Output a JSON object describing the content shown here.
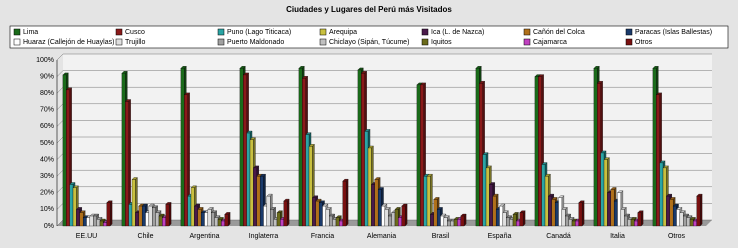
{
  "chart_data": {
    "type": "bar",
    "title": "Ciudades y Lugares del Perú más Visitados",
    "categories": [
      "EE.UU",
      "Chile",
      "Argentina",
      "Inglaterra",
      "Francia",
      "Alemania",
      "Brasil",
      "España",
      "Canadá",
      "Italia",
      "Otros"
    ],
    "series": [
      {
        "name": "Lima",
        "color": "#1a6b1a",
        "values": [
          91,
          92,
          95,
          95,
          95,
          94,
          85,
          95,
          90,
          95,
          95
        ]
      },
      {
        "name": "Cusco",
        "color": "#8b1a1a",
        "values": [
          82,
          75,
          79,
          91,
          89,
          92,
          85,
          86,
          90,
          86,
          79
        ]
      },
      {
        "name": "Puno (Lago Titicaca)",
        "color": "#2aa5a5",
        "values": [
          25,
          13,
          18,
          56,
          55,
          57,
          30,
          43,
          37,
          44,
          38
        ]
      },
      {
        "name": "Arequipa",
        "color": "#c8c040",
        "values": [
          23,
          28,
          23,
          52,
          48,
          47,
          30,
          35,
          30,
          40,
          35
        ]
      },
      {
        "name": "Ica (L. de Nazca)",
        "color": "#4a1a4a",
        "values": [
          10,
          8,
          12,
          35,
          17,
          25,
          7,
          25,
          18,
          20,
          18
        ]
      },
      {
        "name": "Cañón del Colca",
        "color": "#b0701a",
        "values": [
          8,
          12,
          10,
          30,
          15,
          28,
          16,
          18,
          16,
          22,
          16
        ]
      },
      {
        "name": "Paracas (Islas Ballestas)",
        "color": "#1a3a6b",
        "values": [
          5,
          12,
          8,
          30,
          14,
          22,
          10,
          10,
          14,
          15,
          12
        ]
      },
      {
        "name": "Huaraz (Callejón de Huaylas)",
        "color": "#ffffff",
        "values": [
          5,
          8,
          8,
          12,
          12,
          12,
          6,
          12,
          17,
          20,
          10
        ]
      },
      {
        "name": "Trujillo",
        "color": "#e0e0e0",
        "values": [
          6,
          12,
          10,
          18,
          10,
          10,
          5,
          8,
          10,
          10,
          8
        ]
      },
      {
        "name": "Puerto Maldonado",
        "color": "#a0a0a0",
        "values": [
          6,
          11,
          8,
          10,
          6,
          6,
          3,
          5,
          6,
          6,
          6
        ]
      },
      {
        "name": "Chiclayo (Sipán, Túcume)",
        "color": "#c0c0c0",
        "values": [
          4,
          8,
          5,
          4,
          4,
          8,
          3,
          4,
          4,
          4,
          5
        ]
      },
      {
        "name": "Iquitos",
        "color": "#6b6b1a",
        "values": [
          3,
          6,
          4,
          8,
          5,
          10,
          4,
          7,
          3,
          4,
          4
        ]
      },
      {
        "name": "Cajamarca",
        "color": "#c040c0",
        "values": [
          2,
          5,
          3,
          4,
          3,
          5,
          4,
          3,
          3,
          3,
          3
        ]
      },
      {
        "name": "Otros",
        "color": "#7a1010",
        "values": [
          14,
          13,
          7,
          15,
          27,
          12,
          6,
          8,
          14,
          8,
          18
        ]
      }
    ],
    "ylim": [
      0,
      100
    ],
    "yticks": [
      {
        "value": 0,
        "label": "0%"
      },
      {
        "value": 10,
        "label": "10%"
      },
      {
        "value": 20,
        "label": "20%"
      },
      {
        "value": 30,
        "label": "30%"
      },
      {
        "value": 40,
        "label": "40%"
      },
      {
        "value": 50,
        "label": "50%"
      },
      {
        "value": 60,
        "label": "60%"
      },
      {
        "value": 70,
        "label": "70%"
      },
      {
        "value": 80,
        "label": "80%"
      },
      {
        "value": 90,
        "label": "90%"
      },
      {
        "value": 100,
        "label": "100%"
      }
    ],
    "grid": true
  }
}
